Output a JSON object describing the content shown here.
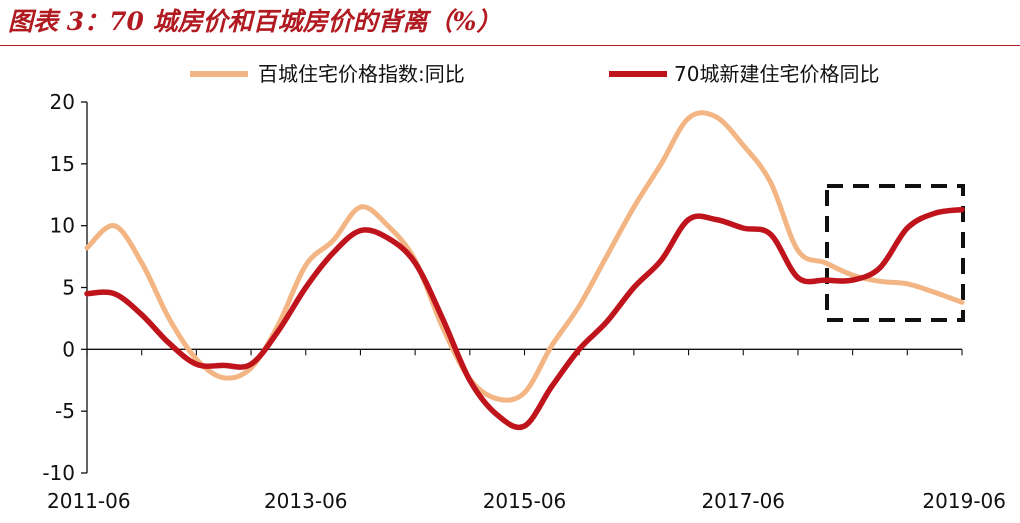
{
  "title": "图表 3：70 城房价和百城房价的背离（%）",
  "colors": {
    "title": "#b01a20",
    "baicheng": "#f2b583",
    "city70": "#c0141c",
    "highlight_box": "#111111",
    "axis": "#111111"
  },
  "chart_data": {
    "type": "line",
    "title": "图表 3：70 城房价和百城房价的背离（%）",
    "xlabel": "",
    "ylabel": "",
    "x_range": [
      "2011-06",
      "2019-06"
    ],
    "x_ticks": [
      "2011-06",
      "2013-06",
      "2015-06",
      "2017-06",
      "2019-06"
    ],
    "ylim": [
      -10,
      20
    ],
    "y_ticks": [
      -10,
      -5,
      0,
      5,
      10,
      15,
      20
    ],
    "grid": false,
    "legend_position": "top",
    "series": [
      {
        "name": "百城住宅价格指数:同比",
        "color": "#f2b583",
        "points": [
          [
            "2011-06",
            8.2
          ],
          [
            "2011-09",
            10.0
          ],
          [
            "2011-12",
            7.0
          ],
          [
            "2012-03",
            2.5
          ],
          [
            "2012-06",
            -0.8
          ],
          [
            "2012-09",
            -2.3
          ],
          [
            "2012-12",
            -1.5
          ],
          [
            "2013-03",
            2.0
          ],
          [
            "2013-06",
            6.8
          ],
          [
            "2013-09",
            8.8
          ],
          [
            "2013-12",
            11.5
          ],
          [
            "2014-03",
            10.0
          ],
          [
            "2014-06",
            7.2
          ],
          [
            "2014-09",
            1.8
          ],
          [
            "2014-12",
            -2.4
          ],
          [
            "2015-03",
            -4.0
          ],
          [
            "2015-06",
            -3.5
          ],
          [
            "2015-09",
            0.3
          ],
          [
            "2015-12",
            3.5
          ],
          [
            "2016-03",
            7.5
          ],
          [
            "2016-06",
            11.5
          ],
          [
            "2016-09",
            15.0
          ],
          [
            "2016-12",
            18.7
          ],
          [
            "2017-03",
            18.8
          ],
          [
            "2017-06",
            16.5
          ],
          [
            "2017-09",
            13.5
          ],
          [
            "2017-12",
            8.0
          ],
          [
            "2018-03",
            7.0
          ],
          [
            "2018-06",
            6.0
          ],
          [
            "2018-09",
            5.5
          ],
          [
            "2018-12",
            5.3
          ],
          [
            "2019-03",
            4.6
          ],
          [
            "2019-06",
            3.8
          ]
        ]
      },
      {
        "name": "70城新建住宅价格同比",
        "color": "#c0141c",
        "points": [
          [
            "2011-06",
            4.5
          ],
          [
            "2011-09",
            4.5
          ],
          [
            "2011-12",
            2.8
          ],
          [
            "2012-03",
            0.5
          ],
          [
            "2012-06",
            -1.2
          ],
          [
            "2012-09",
            -1.3
          ],
          [
            "2012-12",
            -1.2
          ],
          [
            "2013-03",
            1.5
          ],
          [
            "2013-06",
            5.0
          ],
          [
            "2013-09",
            7.8
          ],
          [
            "2013-12",
            9.6
          ],
          [
            "2014-03",
            9.0
          ],
          [
            "2014-06",
            7.0
          ],
          [
            "2014-09",
            2.5
          ],
          [
            "2014-12",
            -2.5
          ],
          [
            "2015-03",
            -5.3
          ],
          [
            "2015-06",
            -6.2
          ],
          [
            "2015-09",
            -3.0
          ],
          [
            "2015-12",
            0.0
          ],
          [
            "2016-03",
            2.2
          ],
          [
            "2016-06",
            5.0
          ],
          [
            "2016-09",
            7.2
          ],
          [
            "2016-12",
            10.5
          ],
          [
            "2017-03",
            10.5
          ],
          [
            "2017-06",
            9.8
          ],
          [
            "2017-09",
            9.3
          ],
          [
            "2017-12",
            5.8
          ],
          [
            "2018-03",
            5.6
          ],
          [
            "2018-06",
            5.6
          ],
          [
            "2018-09",
            6.6
          ],
          [
            "2018-12",
            9.8
          ],
          [
            "2019-03",
            11.0
          ],
          [
            "2019-06",
            11.3
          ]
        ]
      }
    ]
  }
}
